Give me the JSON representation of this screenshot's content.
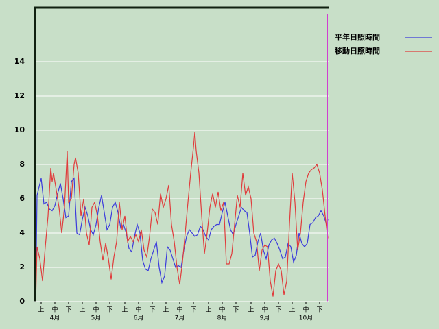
{
  "chart_data": {
    "type": "line",
    "xlim": [
      0,
      214
    ],
    "ylim": [
      0,
      17
    ],
    "yticks": [
      0,
      2,
      4,
      6,
      8,
      10,
      12,
      14
    ],
    "xticks": [
      {
        "value": 4,
        "label": "上"
      },
      {
        "value": 14,
        "label": "中"
      },
      {
        "value": 24,
        "label": "下"
      },
      {
        "value": 34,
        "label": "上"
      },
      {
        "value": 44,
        "label": "中"
      },
      {
        "value": 54,
        "label": "下"
      },
      {
        "value": 65,
        "label": "上"
      },
      {
        "value": 75,
        "label": "中"
      },
      {
        "value": 85,
        "label": "下"
      },
      {
        "value": 95,
        "label": "上"
      },
      {
        "value": 105,
        "label": "中"
      },
      {
        "value": 115,
        "label": "下"
      },
      {
        "value": 126,
        "label": "上"
      },
      {
        "value": 136,
        "label": "中"
      },
      {
        "value": 146,
        "label": "下"
      },
      {
        "value": 157,
        "label": "上"
      },
      {
        "value": 167,
        "label": "中"
      },
      {
        "value": 177,
        "label": "下"
      },
      {
        "value": 187,
        "label": "上"
      },
      {
        "value": 197,
        "label": "中"
      },
      {
        "value": 207,
        "label": "下"
      }
    ],
    "month_ticks": [
      {
        "value": 14,
        "label": "4月"
      },
      {
        "value": 44,
        "label": "5月"
      },
      {
        "value": 75,
        "label": "6月"
      },
      {
        "value": 105,
        "label": "7月"
      },
      {
        "value": 136,
        "label": "8月"
      },
      {
        "value": 167,
        "label": "9月"
      },
      {
        "value": 197,
        "label": "10月"
      }
    ],
    "grid": true,
    "series": [
      {
        "name": "平年日照時間",
        "color": "#3b3bdc",
        "x": [
          0,
          1,
          4,
          6,
          8,
          10,
          12,
          14,
          16,
          18,
          20,
          22,
          24,
          26,
          28,
          30,
          32,
          34,
          36,
          38,
          40,
          42,
          44,
          46,
          48,
          50,
          52,
          54,
          56,
          58,
          60,
          62,
          64,
          66,
          68,
          70,
          72,
          74,
          76,
          78,
          80,
          82,
          84,
          86,
          88,
          90,
          92,
          94,
          96,
          98,
          100,
          102,
          104,
          106,
          108,
          110,
          112,
          114,
          116,
          118,
          120,
          122,
          124,
          126,
          128,
          130,
          132,
          134,
          136,
          138,
          140,
          142,
          144,
          146,
          148,
          150,
          152,
          154,
          156,
          158,
          160,
          162,
          164,
          166,
          168,
          170,
          172,
          174,
          176,
          178,
          180,
          182,
          184,
          186,
          188,
          190,
          192,
          194,
          196,
          198,
          200,
          202,
          204,
          206,
          208,
          210,
          212,
          213
        ],
        "values": [
          0,
          6.2,
          7.2,
          5.7,
          5.8,
          5.4,
          5.3,
          5.6,
          6.3,
          6.9,
          6.0,
          4.9,
          5.0,
          7.0,
          7.2,
          4.0,
          3.9,
          4.8,
          5.5,
          5.0,
          4.2,
          3.9,
          4.5,
          5.5,
          6.2,
          5.2,
          4.2,
          4.5,
          5.5,
          5.8,
          5.2,
          4.3,
          4.5,
          4.0,
          3.1,
          2.9,
          3.8,
          4.5,
          4.0,
          2.4,
          1.9,
          1.8,
          2.5,
          3.0,
          3.5,
          2.0,
          1.1,
          1.5,
          3.2,
          3.0,
          2.5,
          2.0,
          2.1,
          2.0,
          3.0,
          3.8,
          4.2,
          4.0,
          3.8,
          3.9,
          4.4,
          4.2,
          3.8,
          3.6,
          4.2,
          4.4,
          4.5,
          4.5,
          5.2,
          5.8,
          5.0,
          4.2,
          3.9,
          4.5,
          5.0,
          5.5,
          5.3,
          5.2,
          4.0,
          2.6,
          2.7,
          3.5,
          4.0,
          3.0,
          2.5,
          3.3,
          3.6,
          3.7,
          3.4,
          3.0,
          2.5,
          2.6,
          3.4,
          3.2,
          2.3,
          2.7,
          4.0,
          3.4,
          3.2,
          3.4,
          4.5,
          4.6,
          4.9,
          5.0,
          5.3,
          5.0,
          4.5,
          4.8
        ]
      },
      {
        "name": "移動日照時間",
        "color": "#e03c3c",
        "x": [
          0,
          1,
          3,
          5,
          7,
          9,
          11,
          12,
          13,
          15,
          17,
          19,
          21,
          23,
          24,
          26,
          28,
          29,
          31,
          33,
          35,
          37,
          39,
          41,
          43,
          45,
          47,
          49,
          51,
          53,
          55,
          57,
          59,
          61,
          63,
          65,
          67,
          69,
          71,
          73,
          75,
          77,
          79,
          81,
          83,
          85,
          87,
          89,
          91,
          93,
          95,
          97,
          99,
          101,
          103,
          105,
          107,
          109,
          111,
          113,
          115,
          116,
          117,
          119,
          121,
          123,
          125,
          127,
          129,
          131,
          133,
          135,
          137,
          139,
          141,
          143,
          145,
          147,
          149,
          151,
          153,
          155,
          157,
          159,
          161,
          163,
          165,
          167,
          169,
          171,
          173,
          175,
          177,
          179,
          181,
          183,
          185,
          187,
          189,
          191,
          193,
          195,
          197,
          199,
          201,
          203,
          205,
          207,
          209,
          211,
          213
        ],
        "values": [
          0,
          3.2,
          2.5,
          1.2,
          3.2,
          5.0,
          7.8,
          7.0,
          7.5,
          6.5,
          5.5,
          4.0,
          5.5,
          8.8,
          5.8,
          6.0,
          8.0,
          8.4,
          7.5,
          5.0,
          6.0,
          4.0,
          3.3,
          5.5,
          5.8,
          5.0,
          3.5,
          2.4,
          3.4,
          2.5,
          1.3,
          2.6,
          3.5,
          5.8,
          4.2,
          5.0,
          3.5,
          3.8,
          3.5,
          3.9,
          3.5,
          4.2,
          3.0,
          2.6,
          3.8,
          5.4,
          5.2,
          4.5,
          6.3,
          5.5,
          6.0,
          6.8,
          4.5,
          3.5,
          2.0,
          1.0,
          2.3,
          4.0,
          5.8,
          7.5,
          9.0,
          9.9,
          8.8,
          7.5,
          5.0,
          2.8,
          4.0,
          5.5,
          6.3,
          5.5,
          6.4,
          5.3,
          5.8,
          2.2,
          2.2,
          2.8,
          4.5,
          6.2,
          5.5,
          7.5,
          6.2,
          6.7,
          6.0,
          4.0,
          3.5,
          1.8,
          3.0,
          3.3,
          3.2,
          1.2,
          0.3,
          1.8,
          2.2,
          1.8,
          0.4,
          1.2,
          4.5,
          7.5,
          5.8,
          3.0,
          4.0,
          5.8,
          7.0,
          7.5,
          7.7,
          7.8,
          8.0,
          7.5,
          6.5,
          5.0,
          3.7
        ]
      }
    ]
  }
}
